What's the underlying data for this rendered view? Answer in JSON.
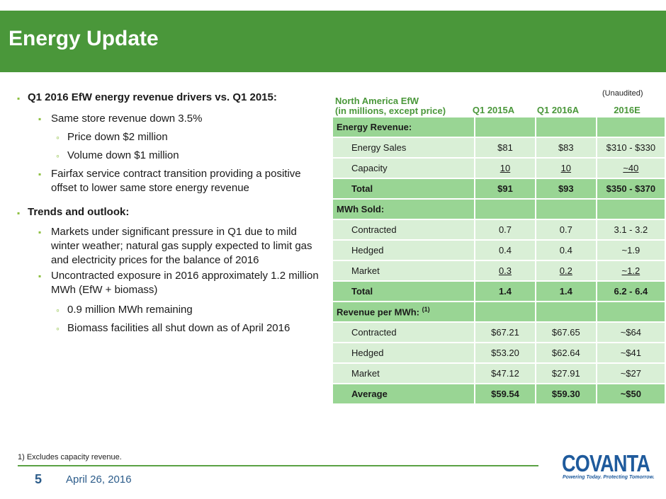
{
  "title": "Energy Update",
  "bullets": [
    {
      "level": 1,
      "text": "Q1 2016 EfW energy revenue drivers vs. Q1 2015:"
    },
    {
      "level": 2,
      "text": "Same store revenue down 3.5%"
    },
    {
      "level": 3,
      "text": "Price down $2 million"
    },
    {
      "level": 3,
      "text": "Volume down $1 million"
    },
    {
      "level": 2,
      "text": "Fairfax service contract transition providing a positive offset to lower same store energy revenue"
    },
    {
      "level": 1,
      "text": "Trends and outlook:"
    },
    {
      "level": 2,
      "text": "Markets under significant pressure in Q1 due to mild winter weather; natural gas supply expected to limit gas and electricity prices for the balance of 2016"
    },
    {
      "level": 2,
      "text": "Uncontracted exposure in 2016 approximately 1.2 million MWh (EfW + biomass)"
    },
    {
      "level": 3,
      "text": "0.9 million MWh remaining"
    },
    {
      "level": 3,
      "text": "Biomass facilities all shut down as of April 2016"
    }
  ],
  "table": {
    "unaudited": "(Unaudited)",
    "name_line1": "North America EfW",
    "name_line2": "(in millions, except price)",
    "columns": [
      "Q1 2015A",
      "Q1 2016A",
      "2016E"
    ],
    "rows": [
      {
        "type": "header",
        "label": "Energy Revenue:",
        "values": [
          "",
          "",
          ""
        ]
      },
      {
        "type": "row",
        "label": "Energy Sales",
        "values": [
          "$81",
          "$83",
          "$310 - $330"
        ]
      },
      {
        "type": "row",
        "label": "Capacity",
        "values": [
          "10",
          "10",
          "~40"
        ],
        "underline": true
      },
      {
        "type": "total",
        "label": "Total",
        "values": [
          "$91",
          "$93",
          "$350 - $370"
        ]
      },
      {
        "type": "header",
        "label": "MWh Sold:",
        "values": [
          "",
          "",
          ""
        ]
      },
      {
        "type": "row",
        "label": "Contracted",
        "values": [
          "0.7",
          "0.7",
          "3.1 - 3.2"
        ]
      },
      {
        "type": "row",
        "label": "Hedged",
        "values": [
          "0.4",
          "0.4",
          "~1.9"
        ]
      },
      {
        "type": "row",
        "label": "Market",
        "values": [
          "0.3",
          "0.2",
          "~1.2"
        ],
        "underline": true
      },
      {
        "type": "total",
        "label": "Total",
        "values": [
          "1.4",
          "1.4",
          "6.2 - 6.4"
        ]
      },
      {
        "type": "header",
        "label": "Revenue per MWh:",
        "sup": "(1)",
        "values": [
          "",
          "",
          ""
        ]
      },
      {
        "type": "row",
        "label": "Contracted",
        "values": [
          "$67.21",
          "$67.65",
          "~$64"
        ]
      },
      {
        "type": "row",
        "label": "Hedged",
        "values": [
          "$53.20",
          "$62.64",
          "~$41"
        ]
      },
      {
        "type": "row",
        "label": "Market",
        "values": [
          "$47.12",
          "$27.91",
          "~$27"
        ]
      },
      {
        "type": "total",
        "label": "Average",
        "values": [
          "$59.54",
          "$59.30",
          "~$50"
        ]
      }
    ]
  },
  "footnote": "1) Excludes capacity revenue.",
  "page_number": "5",
  "date": "April 26, 2016",
  "logo": {
    "word": "COVANTA",
    "tagline": "Powering Today. Protecting Tomorrow."
  },
  "colors": {
    "header_green": "#4a973a",
    "row_light": "#d9efd6",
    "row_dark": "#99d594",
    "brand_blue": "#1e5a9c"
  }
}
